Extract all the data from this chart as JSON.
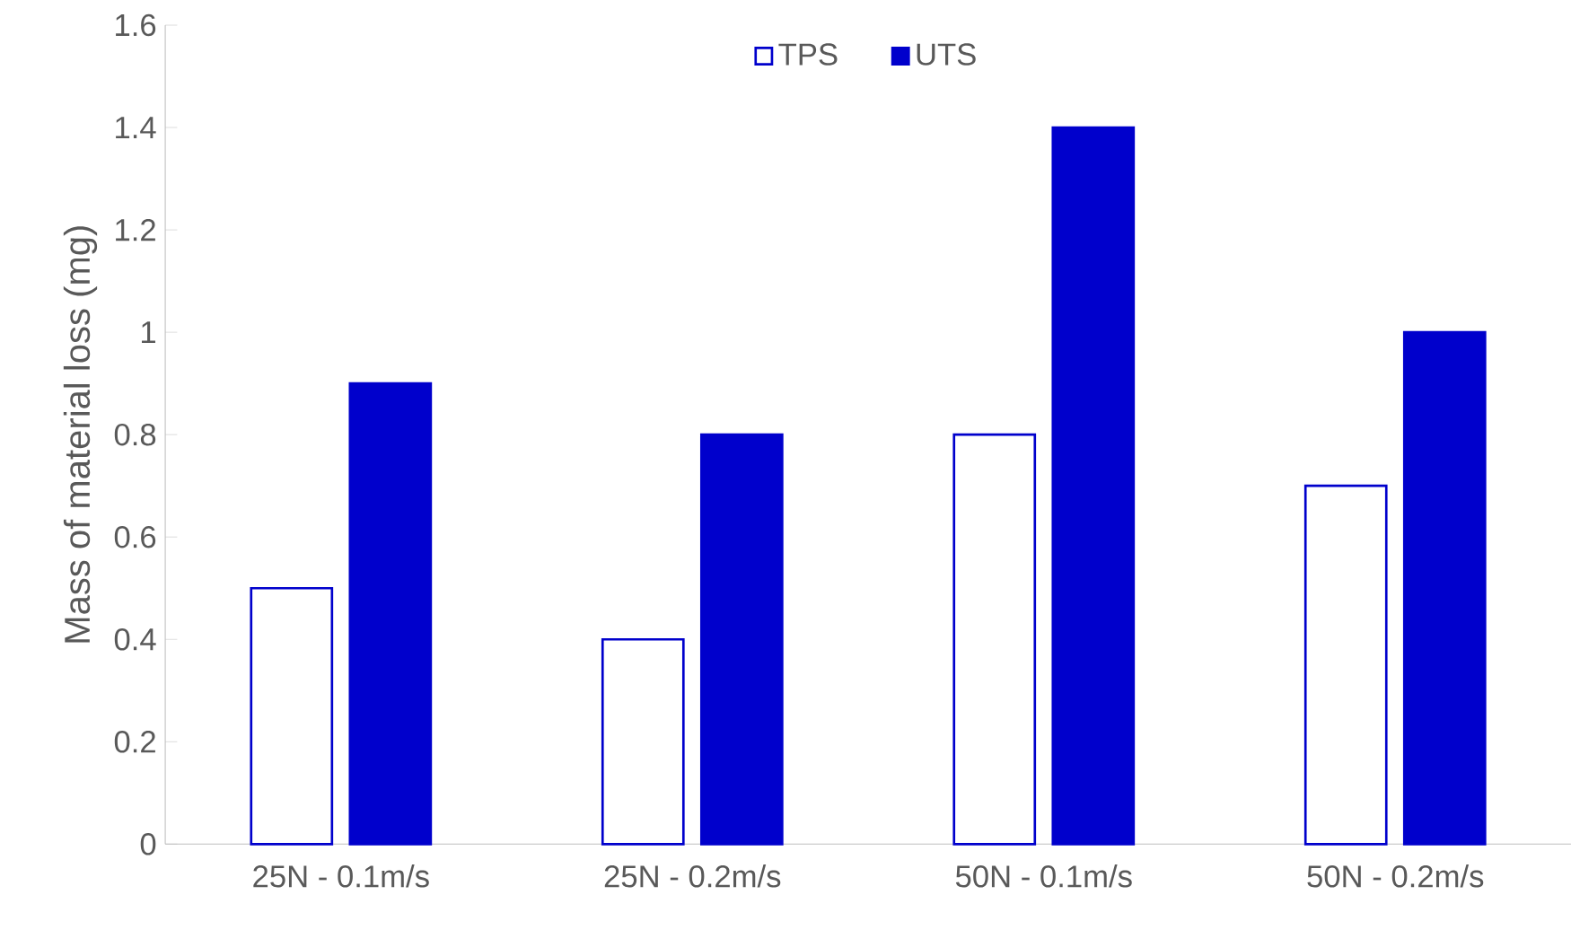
{
  "chart_data": {
    "type": "bar",
    "ylabel": "Mass of material loss (mg)",
    "categories": [
      "25N - 0.1m/s",
      "25N - 0.2m/s",
      "50N - 0.1m/s",
      "50N - 0.2m/s"
    ],
    "series": [
      {
        "name": "TPS",
        "color": "#ffffff",
        "values": [
          0.5,
          0.4,
          0.8,
          0.7
        ]
      },
      {
        "name": "UTS",
        "color": "#0000cc",
        "values": [
          0.9,
          0.8,
          1.4,
          1.0
        ]
      }
    ],
    "ylim": [
      0,
      1.6
    ],
    "yticks": [
      0,
      0.2,
      0.4,
      0.6,
      0.8,
      1,
      1.2,
      1.4,
      1.6
    ],
    "grid": false,
    "legend": "top"
  }
}
